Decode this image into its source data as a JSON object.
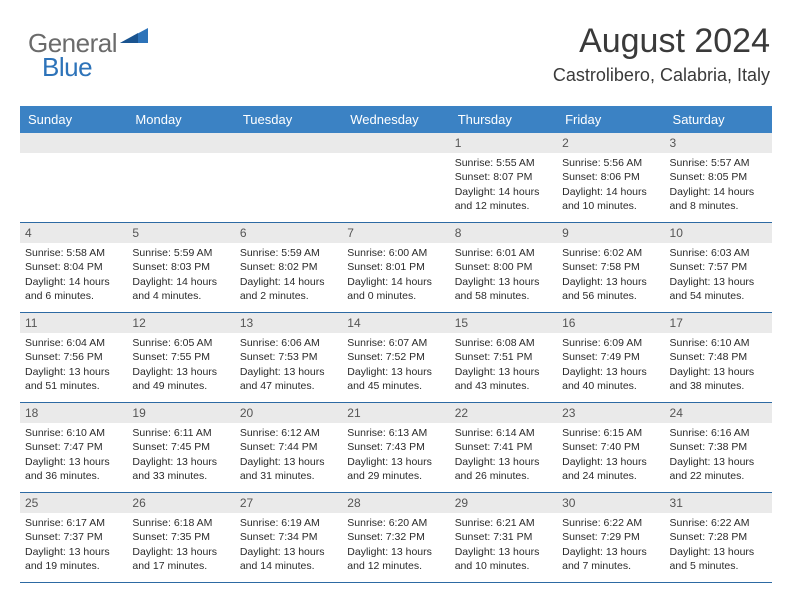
{
  "logo": {
    "text_general": "General",
    "text_blue": "Blue"
  },
  "header": {
    "month": "August 2024",
    "location": "Castrolibero, Calabria, Italy"
  },
  "colors": {
    "header_bar": "#3b82c4",
    "row_border": "#2d6aa3",
    "daynum_bg": "#eaeaea",
    "logo_gray": "#6b6b6b",
    "logo_blue": "#2d73b9",
    "text_dark": "#3a3a3a"
  },
  "day_names": [
    "Sunday",
    "Monday",
    "Tuesday",
    "Wednesday",
    "Thursday",
    "Friday",
    "Saturday"
  ],
  "weeks": [
    [
      null,
      null,
      null,
      null,
      {
        "n": "1",
        "sr": "5:55 AM",
        "ss": "8:07 PM",
        "dl": "14 hours and 12 minutes."
      },
      {
        "n": "2",
        "sr": "5:56 AM",
        "ss": "8:06 PM",
        "dl": "14 hours and 10 minutes."
      },
      {
        "n": "3",
        "sr": "5:57 AM",
        "ss": "8:05 PM",
        "dl": "14 hours and 8 minutes."
      }
    ],
    [
      {
        "n": "4",
        "sr": "5:58 AM",
        "ss": "8:04 PM",
        "dl": "14 hours and 6 minutes."
      },
      {
        "n": "5",
        "sr": "5:59 AM",
        "ss": "8:03 PM",
        "dl": "14 hours and 4 minutes."
      },
      {
        "n": "6",
        "sr": "5:59 AM",
        "ss": "8:02 PM",
        "dl": "14 hours and 2 minutes."
      },
      {
        "n": "7",
        "sr": "6:00 AM",
        "ss": "8:01 PM",
        "dl": "14 hours and 0 minutes."
      },
      {
        "n": "8",
        "sr": "6:01 AM",
        "ss": "8:00 PM",
        "dl": "13 hours and 58 minutes."
      },
      {
        "n": "9",
        "sr": "6:02 AM",
        "ss": "7:58 PM",
        "dl": "13 hours and 56 minutes."
      },
      {
        "n": "10",
        "sr": "6:03 AM",
        "ss": "7:57 PM",
        "dl": "13 hours and 54 minutes."
      }
    ],
    [
      {
        "n": "11",
        "sr": "6:04 AM",
        "ss": "7:56 PM",
        "dl": "13 hours and 51 minutes."
      },
      {
        "n": "12",
        "sr": "6:05 AM",
        "ss": "7:55 PM",
        "dl": "13 hours and 49 minutes."
      },
      {
        "n": "13",
        "sr": "6:06 AM",
        "ss": "7:53 PM",
        "dl": "13 hours and 47 minutes."
      },
      {
        "n": "14",
        "sr": "6:07 AM",
        "ss": "7:52 PM",
        "dl": "13 hours and 45 minutes."
      },
      {
        "n": "15",
        "sr": "6:08 AM",
        "ss": "7:51 PM",
        "dl": "13 hours and 43 minutes."
      },
      {
        "n": "16",
        "sr": "6:09 AM",
        "ss": "7:49 PM",
        "dl": "13 hours and 40 minutes."
      },
      {
        "n": "17",
        "sr": "6:10 AM",
        "ss": "7:48 PM",
        "dl": "13 hours and 38 minutes."
      }
    ],
    [
      {
        "n": "18",
        "sr": "6:10 AM",
        "ss": "7:47 PM",
        "dl": "13 hours and 36 minutes."
      },
      {
        "n": "19",
        "sr": "6:11 AM",
        "ss": "7:45 PM",
        "dl": "13 hours and 33 minutes."
      },
      {
        "n": "20",
        "sr": "6:12 AM",
        "ss": "7:44 PM",
        "dl": "13 hours and 31 minutes."
      },
      {
        "n": "21",
        "sr": "6:13 AM",
        "ss": "7:43 PM",
        "dl": "13 hours and 29 minutes."
      },
      {
        "n": "22",
        "sr": "6:14 AM",
        "ss": "7:41 PM",
        "dl": "13 hours and 26 minutes."
      },
      {
        "n": "23",
        "sr": "6:15 AM",
        "ss": "7:40 PM",
        "dl": "13 hours and 24 minutes."
      },
      {
        "n": "24",
        "sr": "6:16 AM",
        "ss": "7:38 PM",
        "dl": "13 hours and 22 minutes."
      }
    ],
    [
      {
        "n": "25",
        "sr": "6:17 AM",
        "ss": "7:37 PM",
        "dl": "13 hours and 19 minutes."
      },
      {
        "n": "26",
        "sr": "6:18 AM",
        "ss": "7:35 PM",
        "dl": "13 hours and 17 minutes."
      },
      {
        "n": "27",
        "sr": "6:19 AM",
        "ss": "7:34 PM",
        "dl": "13 hours and 14 minutes."
      },
      {
        "n": "28",
        "sr": "6:20 AM",
        "ss": "7:32 PM",
        "dl": "13 hours and 12 minutes."
      },
      {
        "n": "29",
        "sr": "6:21 AM",
        "ss": "7:31 PM",
        "dl": "13 hours and 10 minutes."
      },
      {
        "n": "30",
        "sr": "6:22 AM",
        "ss": "7:29 PM",
        "dl": "13 hours and 7 minutes."
      },
      {
        "n": "31",
        "sr": "6:22 AM",
        "ss": "7:28 PM",
        "dl": "13 hours and 5 minutes."
      }
    ]
  ],
  "labels": {
    "sunrise": "Sunrise: ",
    "sunset": "Sunset: ",
    "daylight": "Daylight: "
  }
}
